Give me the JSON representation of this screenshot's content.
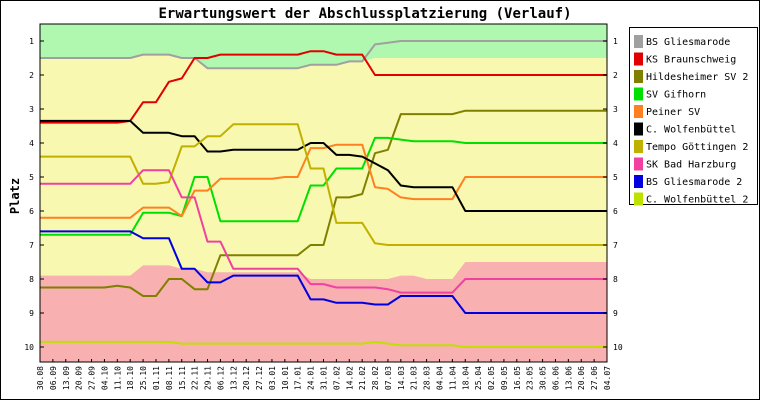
{
  "chart_data": {
    "type": "line",
    "title": "Erwartungswert der Abschlussplatzierung (Verlauf)",
    "ylabel": "Platz",
    "xlabel": "",
    "ylim": [
      1,
      10
    ],
    "y_ticks": [
      1,
      2,
      3,
      4,
      5,
      6,
      7,
      8,
      9,
      10
    ],
    "y_reversed": true,
    "grid": false,
    "legend_position": "right",
    "x": [
      "30.08",
      "06.09",
      "13.09",
      "20.09",
      "27.09",
      "04.10",
      "11.10",
      "18.10",
      "25.10",
      "01.11",
      "08.11",
      "15.11",
      "22.11",
      "29.11",
      "06.12",
      "13.12",
      "20.12",
      "27.12",
      "03.01",
      "10.01",
      "17.01",
      "24.01",
      "31.01",
      "07.02",
      "14.02",
      "21.02",
      "28.02",
      "07.03",
      "14.03",
      "21.03",
      "28.03",
      "04.04",
      "11.04",
      "18.04",
      "25.04",
      "02.05",
      "09.05",
      "16.05",
      "23.05",
      "30.05",
      "06.06",
      "13.06",
      "20.06",
      "27.06",
      "04.07"
    ],
    "zones": {
      "upper": {
        "color": "#b0f8b0",
        "values": [
          1.5,
          1.5,
          1.5,
          1.5,
          1.5,
          1.5,
          1.5,
          1.5,
          1.4,
          1.4,
          1.4,
          1.5,
          1.5,
          1.8,
          1.8,
          1.8,
          1.8,
          1.8,
          1.8,
          1.8,
          1.8,
          1.7,
          1.7,
          1.7,
          1.6,
          1.6,
          1.5,
          1.5,
          1.5,
          1.5,
          1.5,
          1.5,
          1.5,
          1.5,
          1.5,
          1.5,
          1.5,
          1.5,
          1.5,
          1.5,
          1.5,
          1.5,
          1.5,
          1.5,
          1.5
        ]
      },
      "middle": {
        "color": "#f8f8b0"
      },
      "lower": {
        "color": "#f8b0b0",
        "values": [
          7.9,
          7.9,
          7.9,
          7.9,
          7.9,
          7.9,
          7.9,
          7.9,
          7.6,
          7.6,
          7.6,
          7.7,
          7.7,
          7.8,
          7.8,
          7.8,
          7.8,
          7.8,
          7.8,
          7.8,
          7.8,
          8.0,
          8.0,
          8.0,
          8.0,
          8.0,
          8.0,
          8.0,
          7.9,
          7.9,
          8.0,
          8.0,
          8.0,
          7.5,
          7.5,
          7.5,
          7.5,
          7.5,
          7.5,
          7.5,
          7.5,
          7.5,
          7.5,
          7.5,
          7.5
        ]
      }
    },
    "series": [
      {
        "name": "BS Gliesmarode",
        "color": "#a0a0a0",
        "values": [
          1.5,
          1.5,
          1.5,
          1.5,
          1.5,
          1.5,
          1.5,
          1.5,
          1.4,
          1.4,
          1.4,
          1.5,
          1.5,
          1.8,
          1.8,
          1.8,
          1.8,
          1.8,
          1.8,
          1.8,
          1.8,
          1.7,
          1.7,
          1.7,
          1.6,
          1.6,
          1.1,
          1.05,
          1.0,
          1.0,
          1.0,
          1.0,
          1.0,
          1.0,
          1.0,
          1.0,
          1.0,
          1.0,
          1.0,
          1.0,
          1.0,
          1.0,
          1.0,
          1.0,
          1.0
        ]
      },
      {
        "name": "KS Braunschweig",
        "color": "#e00000",
        "values": [
          3.4,
          3.4,
          3.4,
          3.4,
          3.4,
          3.4,
          3.4,
          3.35,
          2.8,
          2.8,
          2.2,
          2.1,
          1.5,
          1.5,
          1.4,
          1.4,
          1.4,
          1.4,
          1.4,
          1.4,
          1.4,
          1.3,
          1.3,
          1.4,
          1.4,
          1.4,
          2.0,
          2.0,
          2.0,
          2.0,
          2.0,
          2.0,
          2.0,
          2.0,
          2.0,
          2.0,
          2.0,
          2.0,
          2.0,
          2.0,
          2.0,
          2.0,
          2.0,
          2.0,
          2.0
        ]
      },
      {
        "name": "Hildesheimer SV 2",
        "color": "#808000",
        "values": [
          8.25,
          8.25,
          8.25,
          8.25,
          8.25,
          8.25,
          8.2,
          8.25,
          8.5,
          8.5,
          8.0,
          8.0,
          8.3,
          8.3,
          7.3,
          7.3,
          7.3,
          7.3,
          7.3,
          7.3,
          7.3,
          7.0,
          7.0,
          5.6,
          5.6,
          5.5,
          4.3,
          4.2,
          3.15,
          3.15,
          3.15,
          3.15,
          3.15,
          3.05,
          3.05,
          3.05,
          3.05,
          3.05,
          3.05,
          3.05,
          3.05,
          3.05,
          3.05,
          3.05,
          3.05
        ]
      },
      {
        "name": "SV Gifhorn",
        "color": "#00e000",
        "values": [
          6.7,
          6.7,
          6.7,
          6.7,
          6.7,
          6.7,
          6.7,
          6.7,
          6.05,
          6.05,
          6.05,
          6.15,
          5.0,
          5.0,
          6.3,
          6.3,
          6.3,
          6.3,
          6.3,
          6.3,
          6.3,
          5.25,
          5.25,
          4.75,
          4.75,
          4.75,
          3.85,
          3.85,
          3.9,
          3.95,
          3.95,
          3.95,
          3.95,
          4.0,
          4.0,
          4.0,
          4.0,
          4.0,
          4.0,
          4.0,
          4.0,
          4.0,
          4.0,
          4.0,
          4.0
        ]
      },
      {
        "name": "Peiner SV",
        "color": "#ff8020",
        "values": [
          6.2,
          6.2,
          6.2,
          6.2,
          6.2,
          6.2,
          6.2,
          6.2,
          5.9,
          5.9,
          5.9,
          6.15,
          5.4,
          5.4,
          5.05,
          5.05,
          5.05,
          5.05,
          5.05,
          5.0,
          5.0,
          4.15,
          4.15,
          4.05,
          4.05,
          4.05,
          5.3,
          5.35,
          5.6,
          5.65,
          5.65,
          5.65,
          5.65,
          5.0,
          5.0,
          5.0,
          5.0,
          5.0,
          5.0,
          5.0,
          5.0,
          5.0,
          5.0,
          5.0,
          5.0
        ]
      },
      {
        "name": "C. Wolfenbüttel",
        "color": "#000000",
        "values": [
          3.35,
          3.35,
          3.35,
          3.35,
          3.35,
          3.35,
          3.35,
          3.35,
          3.7,
          3.7,
          3.7,
          3.8,
          3.8,
          4.25,
          4.25,
          4.2,
          4.2,
          4.2,
          4.2,
          4.2,
          4.2,
          4.0,
          4.0,
          4.35,
          4.35,
          4.4,
          4.6,
          4.8,
          5.25,
          5.3,
          5.3,
          5.3,
          5.3,
          6.0,
          6.0,
          6.0,
          6.0,
          6.0,
          6.0,
          6.0,
          6.0,
          6.0,
          6.0,
          6.0,
          6.0
        ]
      },
      {
        "name": "Tempo Göttingen 2",
        "color": "#c0b000",
        "values": [
          4.4,
          4.4,
          4.4,
          4.4,
          4.4,
          4.4,
          4.4,
          4.4,
          5.2,
          5.2,
          5.15,
          4.1,
          4.1,
          3.8,
          3.8,
          3.45,
          3.45,
          3.45,
          3.45,
          3.45,
          3.45,
          4.75,
          4.75,
          6.35,
          6.35,
          6.35,
          6.95,
          7.0,
          7.0,
          7.0,
          7.0,
          7.0,
          7.0,
          7.0,
          7.0,
          7.0,
          7.0,
          7.0,
          7.0,
          7.0,
          7.0,
          7.0,
          7.0,
          7.0,
          7.0
        ]
      },
      {
        "name": "SK Bad Harzburg",
        "color": "#f040a0",
        "values": [
          5.2,
          5.2,
          5.2,
          5.2,
          5.2,
          5.2,
          5.2,
          5.2,
          4.8,
          4.8,
          4.8,
          5.6,
          5.6,
          6.9,
          6.9,
          7.7,
          7.7,
          7.7,
          7.7,
          7.7,
          7.7,
          8.15,
          8.15,
          8.25,
          8.25,
          8.25,
          8.25,
          8.3,
          8.4,
          8.4,
          8.4,
          8.4,
          8.4,
          8.0,
          8.0,
          8.0,
          8.0,
          8.0,
          8.0,
          8.0,
          8.0,
          8.0,
          8.0,
          8.0,
          8.0
        ]
      },
      {
        "name": "BS Gliesmarode 2",
        "color": "#0000e0",
        "values": [
          6.6,
          6.6,
          6.6,
          6.6,
          6.6,
          6.6,
          6.6,
          6.6,
          6.8,
          6.8,
          6.8,
          7.7,
          7.7,
          8.1,
          8.1,
          7.9,
          7.9,
          7.9,
          7.9,
          7.9,
          7.9,
          8.6,
          8.6,
          8.7,
          8.7,
          8.7,
          8.75,
          8.75,
          8.5,
          8.5,
          8.5,
          8.5,
          8.5,
          9.0,
          9.0,
          9.0,
          9.0,
          9.0,
          9.0,
          9.0,
          9.0,
          9.0,
          9.0,
          9.0,
          9.0
        ]
      },
      {
        "name": "C. Wolfenbüttel 2",
        "color": "#c0e000",
        "values": [
          9.85,
          9.85,
          9.85,
          9.85,
          9.85,
          9.85,
          9.85,
          9.85,
          9.85,
          9.85,
          9.85,
          9.9,
          9.9,
          9.9,
          9.9,
          9.9,
          9.9,
          9.9,
          9.9,
          9.9,
          9.9,
          9.9,
          9.9,
          9.9,
          9.9,
          9.9,
          9.85,
          9.9,
          9.95,
          9.95,
          9.95,
          9.95,
          9.95,
          10.0,
          10.0,
          10.0,
          10.0,
          10.0,
          10.0,
          10.0,
          10.0,
          10.0,
          10.0,
          10.0,
          10.0
        ]
      }
    ]
  }
}
